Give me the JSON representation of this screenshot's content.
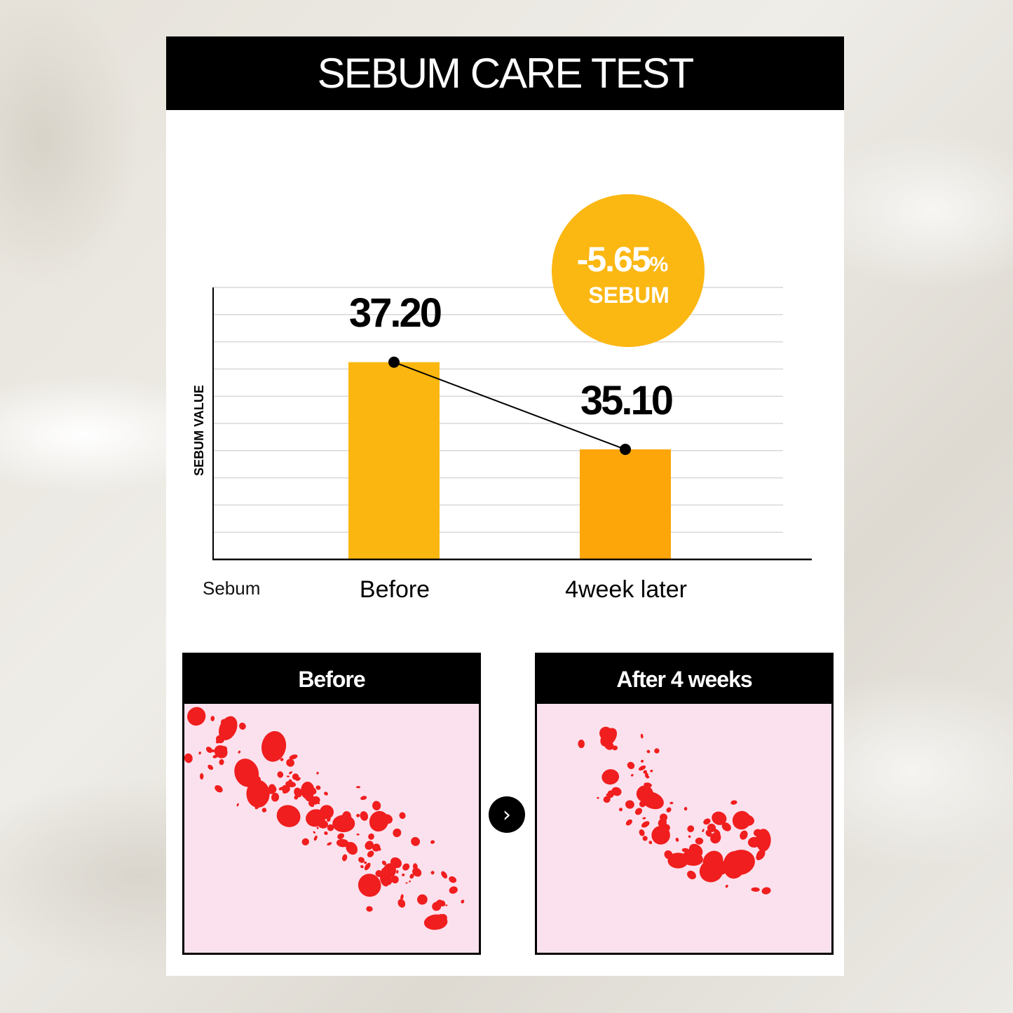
{
  "title": "SEBUM CARE TEST",
  "badge": {
    "value": "-5.65",
    "unit": "%",
    "label": "SEBUM",
    "color": "#fbb712"
  },
  "chart_data": {
    "type": "bar",
    "title": "",
    "xlabel": "Sebum",
    "ylabel": "SEBUM VALUE",
    "categories": [
      "Before",
      "4week later"
    ],
    "values": [
      37.2,
      35.1
    ],
    "data_labels": [
      "37.20",
      "35.10"
    ],
    "ylim": [
      32.45,
      39.0
    ],
    "grid": true,
    "overlay_line": true,
    "bar_colors": [
      "#fbb710",
      "#fca60a"
    ]
  },
  "panels": [
    {
      "label": "Before",
      "background": "#fbe1ee",
      "spot_color": "#f01e1e"
    },
    {
      "label": "After 4 weeks",
      "background": "#fbe1ee",
      "spot_color": "#f01e1e"
    }
  ],
  "arrow_icon": "chevron-right-icon"
}
